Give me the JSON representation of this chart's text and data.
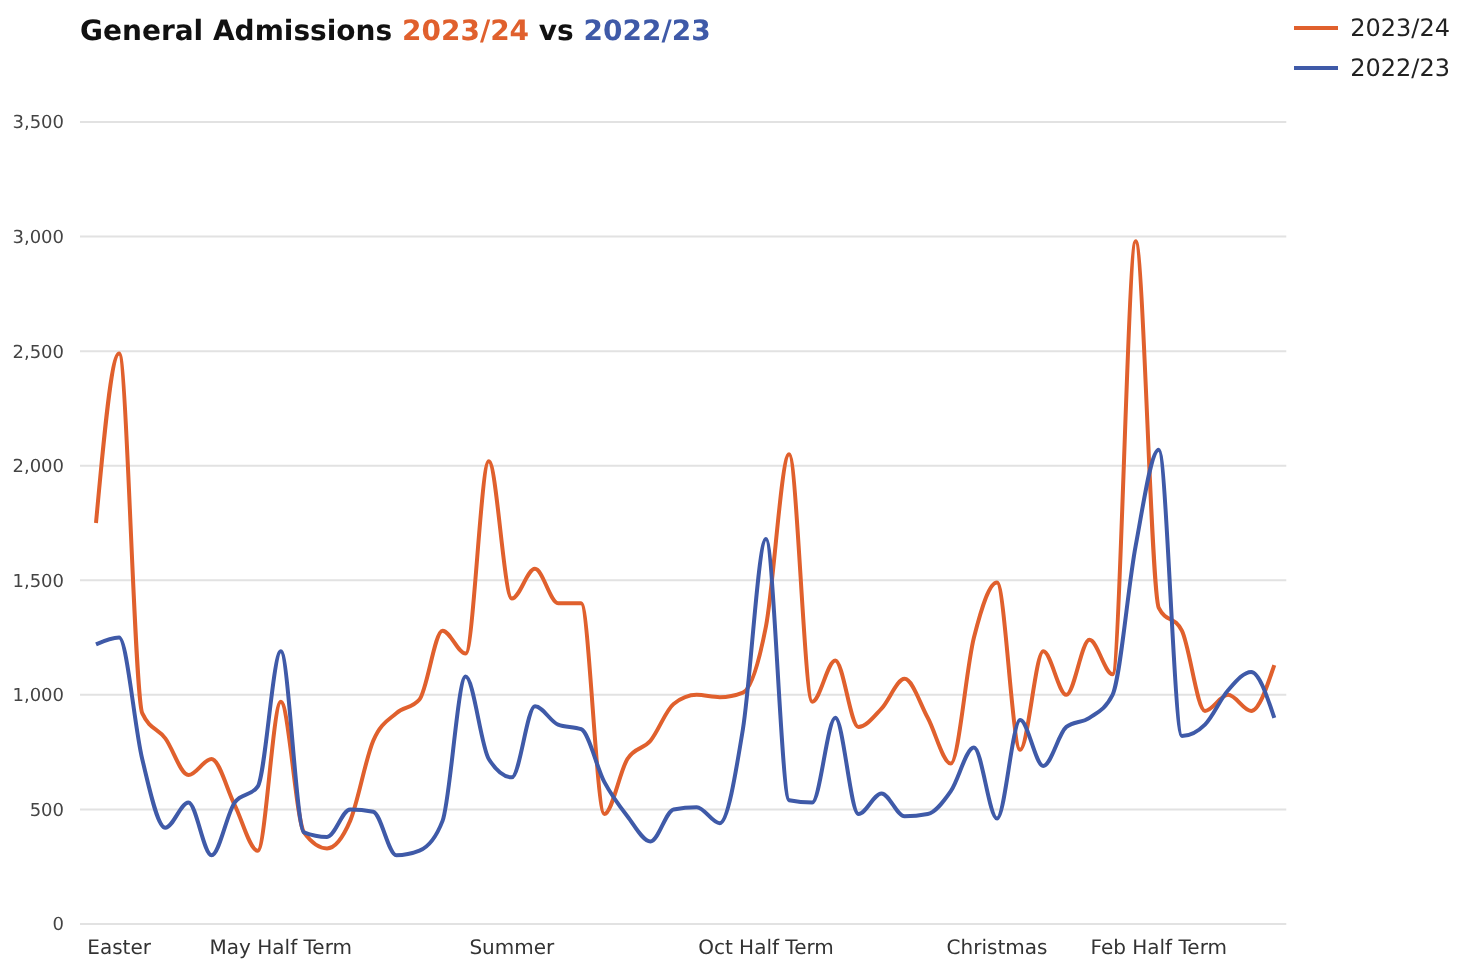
{
  "chart_data": {
    "type": "line",
    "title": "General Admissions 2023/24 vs 2022/23",
    "categories": [
      null,
      "Easter",
      null,
      null,
      null,
      null,
      null,
      null,
      "May Half Term",
      null,
      null,
      null,
      null,
      null,
      null,
      null,
      null,
      null,
      "Summer",
      null,
      null,
      null,
      null,
      null,
      null,
      null,
      null,
      null,
      null,
      "Oct Half Term",
      null,
      null,
      null,
      null,
      null,
      null,
      null,
      null,
      null,
      "Christmas",
      null,
      null,
      null,
      null,
      null,
      null,
      "Feb Half Term",
      null,
      null,
      null,
      null,
      null
    ],
    "series": [
      {
        "name": "2023/24",
        "color": "#e0602d",
        "values": [
          1750,
          2490,
          920,
          810,
          650,
          720,
          520,
          320,
          970,
          400,
          330,
          450,
          800,
          920,
          980,
          1280,
          1180,
          2020,
          1420,
          1550,
          1400,
          1400,
          480,
          720,
          800,
          960,
          1000,
          990,
          1010,
          1300,
          2050,
          970,
          1150,
          860,
          940,
          1070,
          900,
          700,
          1250,
          1490,
          760,
          1190,
          1000,
          1240,
          1090,
          2980,
          1380,
          1280,
          930,
          1000,
          930,
          1130
        ]
      },
      {
        "name": "2022/23",
        "color": "#3f5aa8",
        "values": [
          1220,
          1250,
          720,
          420,
          530,
          300,
          530,
          600,
          1190,
          400,
          380,
          500,
          490,
          300,
          320,
          450,
          1080,
          720,
          640,
          950,
          870,
          850,
          620,
          470,
          360,
          500,
          510,
          440,
          850,
          1680,
          540,
          530,
          900,
          480,
          570,
          470,
          480,
          580,
          770,
          460,
          890,
          690,
          860,
          900,
          1000,
          1650,
          2070,
          820,
          870,
          1020,
          1100,
          900
        ]
      }
    ],
    "ylim": [
      0,
      3500
    ],
    "yticks": [
      0,
      500,
      {
        "value": 1000,
        "label": "1,000"
      },
      {
        "value": 1500,
        "label": "1,500"
      },
      {
        "value": 2000,
        "label": "2,000"
      },
      {
        "value": 2500,
        "label": "2,500"
      },
      {
        "value": 3000,
        "label": "3,000"
      },
      {
        "value": 3500,
        "label": "3,500"
      }
    ],
    "grid": "y",
    "legend": "top right",
    "marker": "none",
    "line_style": "solid"
  }
}
